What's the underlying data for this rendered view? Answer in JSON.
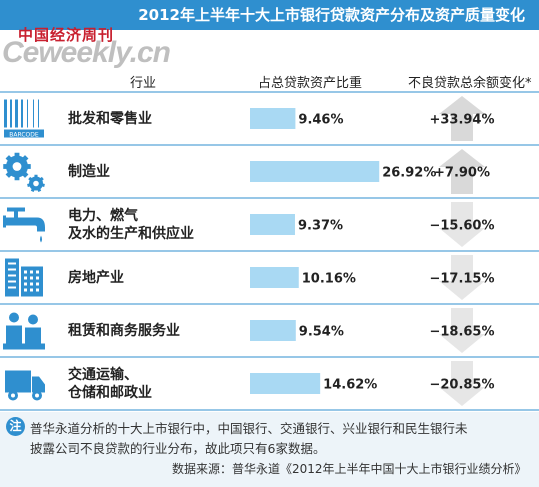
{
  "banner": {
    "title": "2012年上半年十大上市银行贷款资产分布及资产质量变化"
  },
  "brand": {
    "name": "中国经济周刊",
    "watermark": "Ceweekly.cn"
  },
  "headers": {
    "industry": "行业",
    "share": "占总贷款资产比重",
    "change": "不良贷款总余额变化*"
  },
  "chart_data": {
    "type": "bar",
    "title": "2012年上半年十大上市银行贷款资产分布及资产质量变化",
    "categories": [
      "批发和零售业",
      "制造业",
      "电力、燃气及水的生产和供应业",
      "房地产业",
      "租赁和商务服务业",
      "交通运输、仓储和邮政业"
    ],
    "category_lines": [
      [
        "批发和零售业"
      ],
      [
        "制造业"
      ],
      [
        "电力、燃气",
        "及水的生产和供应业"
      ],
      [
        "房地产业"
      ],
      [
        "租赁和商务服务业"
      ],
      [
        "交通运输、",
        "仓储和邮政业"
      ]
    ],
    "icons": [
      "barcode-icon",
      "gears-icon",
      "faucet-icon",
      "buildings-icon",
      "business-people-icon",
      "truck-icon"
    ],
    "series": [
      {
        "name": "占总贷款资产比重",
        "values": [
          9.46,
          26.92,
          9.37,
          10.16,
          9.54,
          14.62
        ],
        "labels": [
          "9.46%",
          "26.92%",
          "9.37%",
          "10.16%",
          "9.54%",
          "14.62%"
        ]
      },
      {
        "name": "不良贷款总余额变化*",
        "values": [
          33.94,
          7.9,
          -15.6,
          -17.15,
          -18.65,
          -20.85
        ],
        "labels": [
          "+33.94%",
          "+7.90%",
          "−15.60%",
          "−17.15%",
          "−18.65%",
          "−20.85%"
        ]
      }
    ],
    "colors": {
      "bar": "#a9d9f3",
      "up_arrow": "#d9d9d9",
      "down_arrow": "#e6e6e6",
      "separator": "#2f8fcf",
      "icon": "#2f8fcf"
    }
  },
  "note": {
    "badge": "注",
    "line1": "普华永道分析的十大上市银行中，中国银行、交通银行、兴业银行和民生银行未",
    "line2": "披露公司不良贷款的行业分布，故此项只有6家数据。",
    "source": "数据来源：普华永道《2012年上半年中国十大上市银行业绩分析》"
  }
}
